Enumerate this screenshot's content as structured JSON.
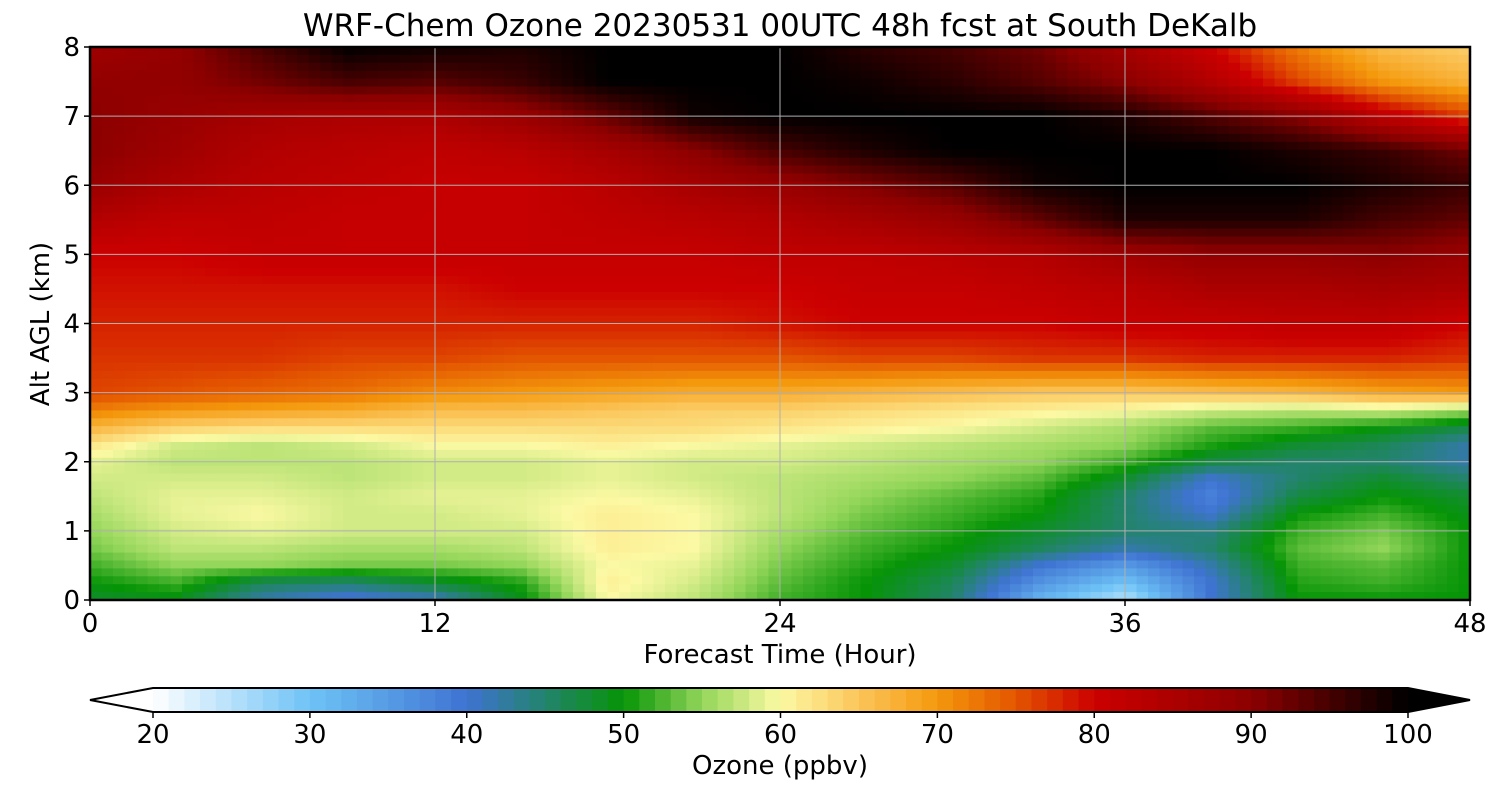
{
  "chart_data": {
    "type": "heatmap",
    "title": "WRF-Chem Ozone  20230531 00UTC 48h fcst at South DeKalb",
    "xlabel": "Forecast Time (Hour)",
    "ylabel": "Alt AGL (km)",
    "xlim": [
      0,
      48
    ],
    "ylim": [
      0,
      8
    ],
    "xticks": [
      0,
      12,
      24,
      36,
      48
    ],
    "yticks": [
      0,
      1,
      2,
      3,
      4,
      5,
      6,
      7,
      8
    ],
    "grid": true,
    "colorbar": {
      "label": "Ozone  (ppbv)",
      "min": 20,
      "max": 100,
      "ticks": [
        20,
        30,
        40,
        50,
        60,
        70,
        80,
        90,
        100
      ],
      "extend": "both",
      "stops": [
        {
          "v": 20,
          "c": "#ffffff"
        },
        {
          "v": 30,
          "c": "#6ec3f6"
        },
        {
          "v": 40,
          "c": "#3f73d2"
        },
        {
          "v": 50,
          "c": "#069406"
        },
        {
          "v": 55,
          "c": "#93d65a"
        },
        {
          "v": 60,
          "c": "#fcf9a4"
        },
        {
          "v": 65,
          "c": "#fbc55a"
        },
        {
          "v": 70,
          "c": "#f4980c"
        },
        {
          "v": 75,
          "c": "#e35500"
        },
        {
          "v": 80,
          "c": "#cc0000"
        },
        {
          "v": 90,
          "c": "#8c0000"
        },
        {
          "v": 100,
          "c": "#000000"
        }
      ]
    },
    "x": [
      0,
      3,
      6,
      9,
      12,
      15,
      18,
      21,
      24,
      27,
      30,
      33,
      36,
      39,
      42,
      45,
      48
    ],
    "y": [
      0,
      0.25,
      0.5,
      0.75,
      1,
      1.25,
      1.5,
      1.75,
      2,
      2.25,
      2.5,
      2.75,
      3,
      3.5,
      4,
      4.5,
      5,
      5.5,
      6,
      6.5,
      7,
      7.5,
      8
    ],
    "values": [
      [
        48,
        49,
        42,
        39,
        41,
        49,
        60,
        57,
        52,
        50,
        45,
        32,
        25,
        40,
        50,
        50,
        50
      ],
      [
        50,
        52,
        46,
        45,
        48,
        51,
        61,
        58,
        53,
        50,
        46,
        36,
        30,
        40,
        51,
        52,
        50
      ],
      [
        52,
        55,
        55,
        54,
        54,
        55,
        60,
        59,
        54,
        51,
        48,
        40,
        35,
        42,
        52,
        53,
        50
      ],
      [
        54,
        57,
        57,
        56,
        56,
        57,
        61,
        60,
        55,
        52,
        50,
        46,
        42,
        45,
        53,
        55,
        50
      ],
      [
        55,
        58,
        59,
        58,
        58,
        58,
        61,
        60,
        56,
        53,
        51,
        48,
        45,
        44,
        52,
        54,
        50
      ],
      [
        56,
        59,
        60,
        58,
        58,
        59,
        61,
        60,
        57,
        54,
        52,
        50,
        45,
        40,
        50,
        52,
        49
      ],
      [
        57,
        59,
        59,
        58,
        59,
        59,
        60,
        59,
        57,
        55,
        53,
        51,
        45,
        38,
        47,
        50,
        48
      ],
      [
        58,
        58,
        58,
        57,
        58,
        58,
        59,
        58,
        57,
        56,
        55,
        53,
        48,
        40,
        45,
        48,
        45
      ],
      [
        59,
        57,
        57,
        57,
        58,
        58,
        59,
        58,
        58,
        57,
        56,
        55,
        52,
        47,
        45,
        45,
        42
      ],
      [
        62,
        58,
        57,
        58,
        60,
        60,
        61,
        60,
        59,
        58,
        57,
        56,
        55,
        51,
        48,
        46,
        42
      ],
      [
        67,
        64,
        63,
        63,
        63,
        63,
        63,
        63,
        62,
        61,
        60,
        58,
        56,
        53,
        52,
        50,
        47
      ],
      [
        72,
        70,
        69,
        68,
        66,
        66,
        65,
        64,
        64,
        63,
        62,
        61,
        60,
        58,
        57,
        58,
        56
      ],
      [
        76,
        75,
        74,
        73,
        71,
        70,
        69,
        68,
        68,
        67,
        66,
        65,
        65,
        66,
        67,
        69,
        70
      ],
      [
        77,
        77,
        77,
        76,
        76,
        75,
        75,
        75,
        75,
        76,
        76,
        77,
        77,
        78,
        78,
        78,
        77
      ],
      [
        78,
        78,
        78,
        78,
        78,
        78,
        78,
        78,
        79,
        80,
        80,
        80,
        81,
        81,
        82,
        82,
        80
      ],
      [
        79,
        79,
        79,
        79,
        79,
        80,
        80,
        80,
        80,
        81,
        81,
        82,
        83,
        85,
        85,
        86,
        85
      ],
      [
        80,
        80,
        81,
        81,
        81,
        81,
        81,
        81,
        82,
        82,
        83,
        84,
        87,
        89,
        89,
        90,
        88
      ],
      [
        84,
        82,
        82,
        81,
        81,
        81,
        82,
        83,
        84,
        86,
        88,
        93,
        98,
        98,
        98,
        95,
        93
      ],
      [
        88,
        85,
        83,
        82,
        81,
        81,
        83,
        86,
        88,
        91,
        94,
        99,
        100,
        100,
        100,
        98,
        96
      ],
      [
        90,
        87,
        84,
        83,
        82,
        83,
        86,
        90,
        95,
        98,
        100,
        100,
        100,
        100,
        98,
        96,
        92
      ],
      [
        90,
        88,
        86,
        85,
        85,
        88,
        93,
        99,
        100,
        100,
        100,
        100,
        98,
        94,
        90,
        82,
        76
      ],
      [
        89,
        89,
        92,
        95,
        94,
        96,
        100,
        100,
        100,
        99,
        97,
        94,
        90,
        84,
        76,
        70,
        67
      ],
      [
        87,
        89,
        95,
        100,
        99,
        98,
        100,
        100,
        100,
        97,
        95,
        92,
        86,
        80,
        72,
        66,
        64
      ]
    ]
  }
}
